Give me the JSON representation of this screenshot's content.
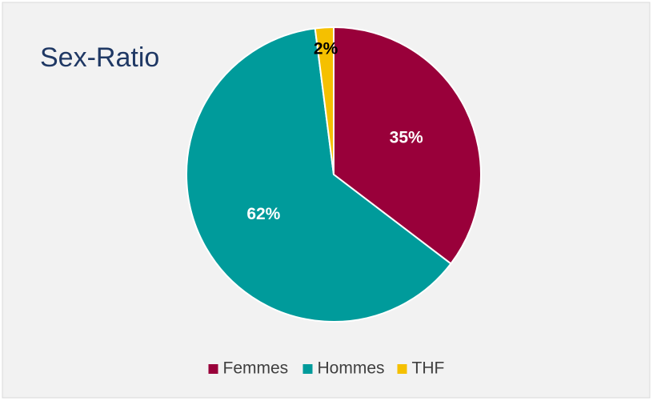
{
  "chart_data": {
    "type": "pie",
    "title": "Sex-Ratio",
    "categories": [
      "Femmes",
      "Hommes",
      "THF"
    ],
    "values": [
      35,
      62,
      2
    ],
    "value_labels": [
      "35%",
      "62%",
      "2%"
    ],
    "colors": [
      "#99003a",
      "#009b9b",
      "#f5c000"
    ],
    "legend": "bottom"
  }
}
